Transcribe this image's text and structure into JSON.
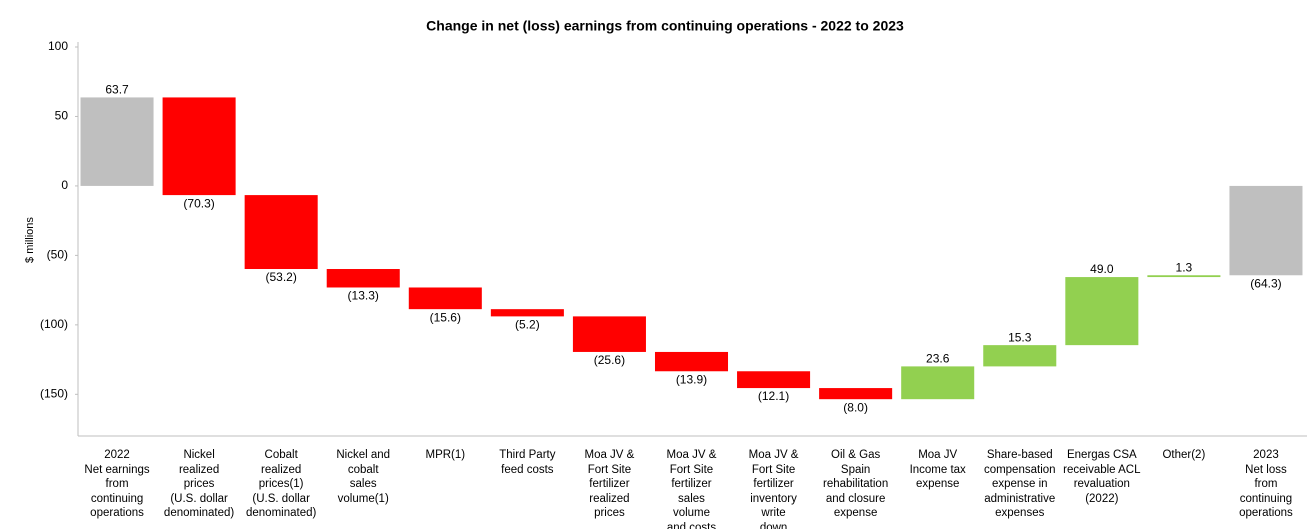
{
  "chart_data": {
    "type": "waterfall",
    "title": "Change in net (loss) earnings from continuing operations - 2022 to 2023",
    "ylabel": "$ millions",
    "categories": [
      "2022\nNet earnings\nfrom\ncontinuing\noperations",
      "Nickel\nrealized\nprices\n(U.S. dollar\ndenominated)",
      "Cobalt\nrealized\nprices(1)\n(U.S. dollar\ndenominated)",
      "Nickel and\ncobalt\nsales\nvolume(1)",
      "MPR(1)",
      "Third Party\nfeed costs",
      "Moa JV &\nFort Site\nfertilizer\nrealized\nprices",
      "Moa JV &\nFort Site\nfertilizer\nsales\nvolume\nand costs",
      "Moa JV &\nFort Site\nfertilizer\ninventory\nwrite\ndown",
      "Oil & Gas\nSpain\nrehabilitation\nand closure\nexpense",
      "Moa JV\nIncome tax\nexpense",
      "Share-based\ncompensation\nexpense in\nadministrative\nexpenses",
      "Energas CSA\nreceivable ACL\nrevaluation\n(2022)",
      "Other(2)",
      "2023\nNet loss\nfrom\ncontinuing\noperations"
    ],
    "values": [
      63.7,
      -70.3,
      -53.2,
      -13.3,
      -15.6,
      -5.2,
      -25.6,
      -13.9,
      -12.1,
      -8.0,
      23.6,
      15.3,
      49.0,
      1.3,
      -64.3
    ],
    "value_labels": [
      "63.7",
      "(70.3)",
      "(53.2)",
      "(13.3)",
      "(15.6)",
      "(5.2)",
      "(25.6)",
      "(13.9)",
      "(12.1)",
      "(8.0)",
      "23.6",
      "15.3",
      "49.0",
      "1.3",
      "(64.3)"
    ],
    "measure": [
      "total",
      "relative",
      "relative",
      "relative",
      "relative",
      "relative",
      "relative",
      "relative",
      "relative",
      "relative",
      "relative",
      "relative",
      "relative",
      "relative",
      "total"
    ],
    "colors": {
      "total": "#bfbfbf",
      "decrease": "#ff0000",
      "increase": "#92d050"
    },
    "ylim": [
      -180,
      100
    ],
    "yticks": [
      100,
      50,
      0,
      {
        "value": -50,
        "label": "(50)"
      },
      {
        "value": -100,
        "label": "(100)"
      },
      {
        "value": -150,
        "label": "(150)"
      }
    ],
    "grid": false
  }
}
